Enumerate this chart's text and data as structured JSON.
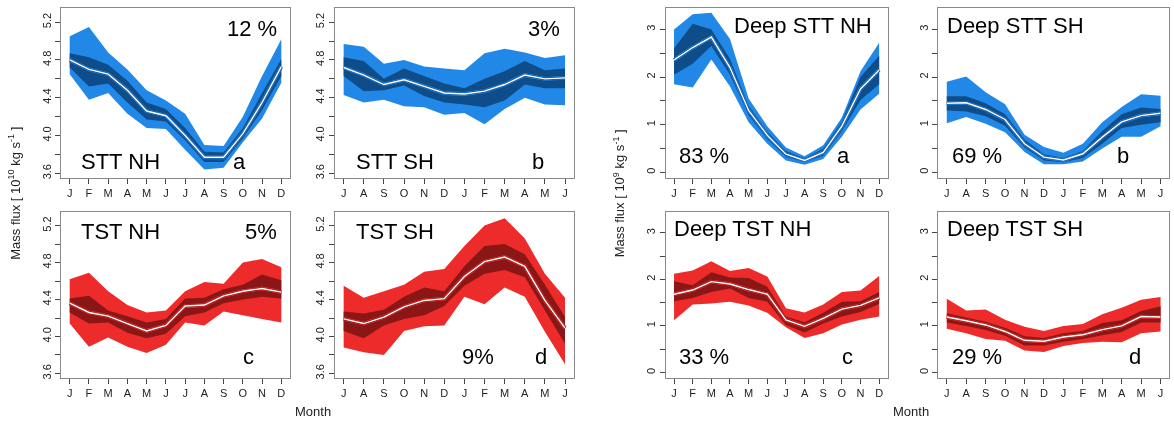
{
  "chart_data": [
    {
      "type": "line",
      "title": "STT NH",
      "annotations": [
        "12 %",
        "a"
      ],
      "ylabel": "Mass flux [ 10$^{10}$ kg s$^{-1}$ ]",
      "categories": [
        "J",
        "F",
        "M",
        "A",
        "M",
        "J",
        "J",
        "A",
        "S",
        "O",
        "N",
        "D"
      ],
      "ylim": [
        3.55,
        5.35
      ],
      "yticks": [
        3.6,
        {
          "value": 3.8,
          "label": null
        },
        {
          "value": 4,
          "label": "4.0"
        },
        {
          "value": 4.2,
          "label": null
        },
        4.4,
        {
          "value": 4.6,
          "label": null
        },
        4.8,
        {
          "value": 5.0,
          "label": null
        },
        5.2
      ],
      "series": [
        {
          "color": "#2188e8",
          "values": [
            4.8,
            4.7,
            4.65,
            4.48,
            4.26,
            4.21,
            4.0,
            3.77,
            3.77,
            4.02,
            4.35,
            4.73
          ],
          "lower": [
            4.65,
            4.38,
            4.45,
            4.23,
            4.08,
            4.07,
            3.85,
            3.64,
            3.66,
            3.93,
            4.18,
            4.56
          ],
          "upper": [
            5.05,
            5.15,
            4.88,
            4.7,
            4.48,
            4.37,
            4.23,
            3.9,
            3.89,
            4.2,
            4.63,
            5.02
          ]
        },
        {
          "color": "#0f4c8a",
          "lower": [
            4.72,
            4.52,
            4.55,
            4.35,
            4.17,
            4.15,
            3.95,
            3.72,
            3.72,
            3.97,
            4.27,
            4.63
          ],
          "upper": [
            4.87,
            4.83,
            4.75,
            4.58,
            4.35,
            4.28,
            4.08,
            3.83,
            3.82,
            4.08,
            4.45,
            4.81
          ],
          "values": [
            4.8,
            4.7,
            4.65,
            4.48,
            4.26,
            4.21,
            4.0,
            3.77,
            3.77,
            4.02,
            4.35,
            4.73
          ]
        },
        {
          "color": "#ffffff",
          "values": [
            4.8,
            4.7,
            4.65,
            4.48,
            4.26,
            4.21,
            4.0,
            3.77,
            3.77,
            4.02,
            4.35,
            4.73
          ]
        }
      ]
    },
    {
      "type": "line",
      "title": "STT SH",
      "annotations": [
        "3%",
        "b"
      ],
      "categories": [
        "J",
        "A",
        "S",
        "O",
        "N",
        "D",
        "J",
        "F",
        "M",
        "A",
        "M",
        "J"
      ],
      "ylim": [
        3.55,
        5.35
      ],
      "yticks": [
        3.6,
        {
          "value": 3.8,
          "label": null
        },
        {
          "value": 4,
          "label": "4.0"
        },
        {
          "value": 4.2,
          "label": null
        },
        4.4,
        {
          "value": 4.6,
          "label": null
        },
        4.8,
        {
          "value": 5.0,
          "label": null
        },
        5.2
      ],
      "series": [
        {
          "color": "#2188e8",
          "values": [
            4.72,
            4.64,
            4.54,
            4.59,
            4.52,
            4.45,
            4.44,
            4.47,
            4.54,
            4.64,
            4.6,
            4.61
          ],
          "lower": [
            4.43,
            4.35,
            4.38,
            4.31,
            4.3,
            4.22,
            4.24,
            4.12,
            4.28,
            4.4,
            4.33,
            4.32
          ],
          "upper": [
            4.97,
            4.94,
            4.76,
            4.8,
            4.73,
            4.71,
            4.69,
            4.87,
            4.92,
            4.88,
            4.82,
            4.85
          ]
        },
        {
          "color": "#0f4c8a",
          "lower": [
            4.63,
            4.47,
            4.48,
            4.53,
            4.42,
            4.35,
            4.33,
            4.3,
            4.37,
            4.54,
            4.5,
            4.5
          ],
          "upper": [
            4.83,
            4.79,
            4.6,
            4.71,
            4.63,
            4.55,
            4.5,
            4.6,
            4.68,
            4.79,
            4.69,
            4.71
          ],
          "values": [
            4.72,
            4.64,
            4.54,
            4.59,
            4.52,
            4.45,
            4.44,
            4.47,
            4.54,
            4.64,
            4.6,
            4.61
          ]
        },
        {
          "color": "#ffffff",
          "values": [
            4.72,
            4.64,
            4.54,
            4.59,
            4.52,
            4.45,
            4.44,
            4.47,
            4.54,
            4.64,
            4.6,
            4.61
          ]
        }
      ]
    },
    {
      "type": "line",
      "title": "TST NH",
      "annotations": [
        "5%",
        "c"
      ],
      "xlabel": "Month",
      "categories": [
        "J",
        "F",
        "M",
        "A",
        "M",
        "J",
        "J",
        "A",
        "S",
        "O",
        "N",
        "D"
      ],
      "ylim": [
        3.55,
        5.35
      ],
      "yticks": [
        3.6,
        {
          "value": 3.8,
          "label": null
        },
        {
          "value": 4,
          "label": "4.0"
        },
        {
          "value": 4.2,
          "label": null
        },
        4.4,
        {
          "value": 4.6,
          "label": null
        },
        4.8,
        {
          "value": 5.0,
          "label": null
        },
        5.2
      ],
      "series": [
        {
          "color": "#ed2b2b",
          "values": [
            4.36,
            4.26,
            4.22,
            4.14,
            4.06,
            4.12,
            4.33,
            4.34,
            4.44,
            4.49,
            4.52,
            4.48
          ],
          "lower": [
            4.14,
            3.89,
            3.99,
            3.89,
            3.82,
            3.91,
            4.15,
            4.12,
            4.27,
            4.23,
            4.19,
            4.15
          ],
          "upper": [
            4.62,
            4.69,
            4.49,
            4.34,
            4.26,
            4.28,
            4.49,
            4.59,
            4.57,
            4.8,
            4.84,
            4.75
          ]
        },
        {
          "color": "#8b1616",
          "lower": [
            4.26,
            4.14,
            4.15,
            4.04,
            3.98,
            4.03,
            4.22,
            4.26,
            4.36,
            4.4,
            4.43,
            4.41
          ],
          "upper": [
            4.41,
            4.44,
            4.28,
            4.22,
            4.15,
            4.19,
            4.41,
            4.42,
            4.51,
            4.56,
            4.67,
            4.61
          ],
          "values": [
            4.36,
            4.26,
            4.22,
            4.14,
            4.06,
            4.12,
            4.33,
            4.34,
            4.44,
            4.49,
            4.52,
            4.48
          ]
        },
        {
          "color": "#ffffff",
          "values": [
            4.36,
            4.26,
            4.22,
            4.14,
            4.06,
            4.12,
            4.33,
            4.34,
            4.44,
            4.49,
            4.52,
            4.48
          ]
        }
      ]
    },
    {
      "type": "line",
      "title": "TST SH",
      "annotations": [
        "9%",
        "d"
      ],
      "categories": [
        "J",
        "A",
        "S",
        "O",
        "N",
        "D",
        "J",
        "F",
        "M",
        "A",
        "M",
        "J"
      ],
      "ylim": [
        3.55,
        5.35
      ],
      "yticks": [
        3.6,
        {
          "value": 3.8,
          "label": null
        },
        {
          "value": 4,
          "label": "4.0"
        },
        {
          "value": 4.2,
          "label": null
        },
        4.4,
        {
          "value": 4.6,
          "label": null
        },
        4.8,
        {
          "value": 5.0,
          "label": null
        },
        5.2
      ],
      "series": [
        {
          "color": "#ed2b2b",
          "values": [
            4.19,
            4.14,
            4.21,
            4.32,
            4.39,
            4.41,
            4.65,
            4.81,
            4.86,
            4.76,
            4.39,
            4.09
          ],
          "lower": [
            3.88,
            3.83,
            3.8,
            4.06,
            4.11,
            4.12,
            4.43,
            4.35,
            4.53,
            4.43,
            4.05,
            3.7
          ],
          "upper": [
            4.55,
            4.42,
            4.49,
            4.56,
            4.7,
            4.73,
            4.98,
            5.2,
            5.28,
            5.06,
            4.68,
            4.42
          ]
        },
        {
          "color": "#8b1616",
          "lower": [
            4.06,
            3.98,
            4.12,
            4.19,
            4.23,
            4.33,
            4.55,
            4.68,
            4.72,
            4.64,
            4.28,
            3.92
          ],
          "upper": [
            4.27,
            4.25,
            4.29,
            4.43,
            4.53,
            4.49,
            4.76,
            4.98,
            5.0,
            4.89,
            4.56,
            4.21
          ],
          "values": [
            4.19,
            4.14,
            4.21,
            4.32,
            4.39,
            4.41,
            4.65,
            4.81,
            4.86,
            4.76,
            4.39,
            4.09
          ]
        },
        {
          "color": "#ffffff",
          "values": [
            4.19,
            4.14,
            4.21,
            4.32,
            4.39,
            4.41,
            4.65,
            4.81,
            4.86,
            4.76,
            4.39,
            4.09
          ]
        }
      ]
    },
    {
      "type": "line",
      "title": "Deep STT NH",
      "annotations": [
        "83 %",
        "a"
      ],
      "ylabel": "Mass flux [ 10$^{9}$ kg s$^{-1}$ ]",
      "categories": [
        "J",
        "F",
        "M",
        "A",
        "M",
        "J",
        "J",
        "A",
        "S",
        "O",
        "N",
        "D"
      ],
      "ylim": [
        -0.12,
        3.45
      ],
      "yticks": [
        0,
        {
          "value": 0.5,
          "label": null
        },
        1,
        {
          "value": 1.5,
          "label": null
        },
        2,
        {
          "value": 2.5,
          "label": null
        },
        3
      ],
      "series": [
        {
          "color": "#2188e8",
          "values": [
            2.36,
            2.62,
            2.84,
            2.2,
            1.3,
            0.78,
            0.38,
            0.25,
            0.42,
            0.97,
            1.75,
            2.15
          ],
          "lower": [
            1.85,
            1.78,
            2.37,
            1.8,
            1.05,
            0.6,
            0.25,
            0.16,
            0.28,
            0.75,
            1.32,
            1.65
          ],
          "upper": [
            3.0,
            3.32,
            3.35,
            2.8,
            1.55,
            0.97,
            0.52,
            0.34,
            0.57,
            1.15,
            2.12,
            2.72
          ]
        },
        {
          "color": "#0f4c8a",
          "lower": [
            2.05,
            2.28,
            2.65,
            2.05,
            1.2,
            0.7,
            0.32,
            0.21,
            0.35,
            0.87,
            1.52,
            1.85
          ],
          "upper": [
            2.6,
            3.12,
            3.0,
            2.38,
            1.4,
            0.85,
            0.45,
            0.29,
            0.5,
            1.07,
            2.0,
            2.45
          ],
          "values": [
            2.36,
            2.62,
            2.84,
            2.2,
            1.3,
            0.78,
            0.38,
            0.25,
            0.42,
            0.97,
            1.75,
            2.15
          ]
        },
        {
          "color": "#ffffff",
          "values": [
            2.36,
            2.62,
            2.84,
            2.2,
            1.3,
            0.78,
            0.38,
            0.25,
            0.42,
            0.97,
            1.75,
            2.15
          ]
        }
      ]
    },
    {
      "type": "line",
      "title": "Deep STT SH",
      "annotations": [
        "69 %",
        "b"
      ],
      "categories": [
        "J",
        "A",
        "S",
        "O",
        "N",
        "D",
        "J",
        "F",
        "M",
        "A",
        "M",
        "J"
      ],
      "ylim": [
        -0.12,
        3.45
      ],
      "yticks": [
        0,
        {
          "value": 0.5,
          "label": null
        },
        1,
        {
          "value": 1.5,
          "label": null
        },
        2,
        {
          "value": 2.5,
          "label": null
        },
        3
      ],
      "series": [
        {
          "color": "#2188e8",
          "values": [
            1.45,
            1.46,
            1.32,
            1.11,
            0.6,
            0.32,
            0.26,
            0.39,
            0.74,
            1.06,
            1.19,
            1.24
          ],
          "lower": [
            1.03,
            1.16,
            1.02,
            0.84,
            0.43,
            0.17,
            0.17,
            0.23,
            0.5,
            0.75,
            0.75,
            0.97
          ],
          "upper": [
            1.9,
            2.01,
            1.68,
            1.43,
            0.79,
            0.53,
            0.41,
            0.6,
            1.05,
            1.37,
            1.64,
            1.61
          ]
        },
        {
          "color": "#0f4c8a",
          "lower": [
            1.3,
            1.28,
            1.18,
            0.98,
            0.52,
            0.25,
            0.21,
            0.3,
            0.6,
            0.93,
            1.0,
            1.05
          ],
          "upper": [
            1.6,
            1.6,
            1.45,
            1.22,
            0.69,
            0.38,
            0.3,
            0.45,
            0.87,
            1.22,
            1.36,
            1.33
          ],
          "values": [
            1.45,
            1.46,
            1.32,
            1.11,
            0.6,
            0.32,
            0.26,
            0.39,
            0.74,
            1.06,
            1.19,
            1.24
          ]
        },
        {
          "color": "#ffffff",
          "values": [
            1.45,
            1.46,
            1.32,
            1.11,
            0.6,
            0.32,
            0.26,
            0.39,
            0.74,
            1.06,
            1.19,
            1.24
          ]
        }
      ]
    },
    {
      "type": "line",
      "title": "Deep TST NH",
      "annotations": [
        "33 %",
        "c"
      ],
      "xlabel": "Month",
      "categories": [
        "J",
        "F",
        "M",
        "A",
        "M",
        "J",
        "J",
        "A",
        "S",
        "O",
        "N",
        "D"
      ],
      "ylim": [
        -0.12,
        3.45
      ],
      "yticks": [
        0,
        {
          "value": 0.5,
          "label": null
        },
        1,
        {
          "value": 1.5,
          "label": null
        },
        2,
        {
          "value": 2.5,
          "label": null
        },
        3
      ],
      "series": [
        {
          "color": "#ed2b2b",
          "values": [
            1.68,
            1.77,
            1.95,
            1.9,
            1.78,
            1.68,
            1.13,
            0.99,
            1.16,
            1.36,
            1.44,
            1.6
          ],
          "lower": [
            1.12,
            1.46,
            1.48,
            1.52,
            1.44,
            1.28,
            0.97,
            0.74,
            0.84,
            1.03,
            1.13,
            1.2
          ],
          "upper": [
            2.12,
            2.19,
            2.39,
            2.18,
            2.24,
            2.06,
            1.38,
            1.29,
            1.46,
            1.73,
            1.76,
            2.07
          ]
        },
        {
          "color": "#8b1616",
          "lower": [
            1.53,
            1.6,
            1.73,
            1.8,
            1.6,
            1.52,
            1.02,
            0.86,
            1.05,
            1.2,
            1.3,
            1.47
          ],
          "upper": [
            1.96,
            1.87,
            2.15,
            2.04,
            2.03,
            1.84,
            1.2,
            1.08,
            1.28,
            1.52,
            1.53,
            1.73
          ],
          "values": [
            1.68,
            1.77,
            1.95,
            1.9,
            1.78,
            1.68,
            1.13,
            0.99,
            1.16,
            1.36,
            1.44,
            1.6
          ]
        },
        {
          "color": "#ffffff",
          "values": [
            1.68,
            1.77,
            1.95,
            1.9,
            1.78,
            1.68,
            1.13,
            0.99,
            1.16,
            1.36,
            1.44,
            1.6
          ]
        }
      ]
    },
    {
      "type": "line",
      "title": "Deep TST SH",
      "annotations": [
        "29 %",
        "d"
      ],
      "categories": [
        "J",
        "A",
        "S",
        "O",
        "N",
        "D",
        "J",
        "F",
        "M",
        "A",
        "M",
        "J"
      ],
      "ylim": [
        -0.12,
        3.45
      ],
      "yticks": [
        0,
        {
          "value": 0.5,
          "label": null
        },
        1,
        {
          "value": 1.5,
          "label": null
        },
        2,
        {
          "value": 2.5,
          "label": null
        },
        3
      ],
      "series": [
        {
          "color": "#ed2b2b",
          "values": [
            1.19,
            1.11,
            1.02,
            0.88,
            0.69,
            0.67,
            0.76,
            0.81,
            0.92,
            1.0,
            1.2,
            1.19
          ],
          "lower": [
            0.94,
            0.84,
            0.72,
            0.68,
            0.47,
            0.44,
            0.57,
            0.63,
            0.66,
            0.65,
            0.84,
            0.88
          ],
          "upper": [
            1.58,
            1.33,
            1.35,
            1.13,
            0.98,
            0.89,
            1.0,
            1.04,
            1.25,
            1.39,
            1.56,
            1.62
          ]
        },
        {
          "color": "#8b1616",
          "lower": [
            1.07,
            1.0,
            0.91,
            0.79,
            0.58,
            0.58,
            0.66,
            0.72,
            0.8,
            0.87,
            1.07,
            1.07
          ],
          "upper": [
            1.27,
            1.18,
            1.09,
            0.96,
            0.78,
            0.74,
            0.84,
            0.89,
            1.06,
            1.12,
            1.32,
            1.42
          ],
          "values": [
            1.19,
            1.11,
            1.02,
            0.88,
            0.69,
            0.67,
            0.76,
            0.81,
            0.92,
            1.0,
            1.2,
            1.19
          ]
        },
        {
          "color": "#ffffff",
          "values": [
            1.19,
            1.11,
            1.02,
            0.88,
            0.69,
            0.67,
            0.76,
            0.81,
            0.92,
            1.0,
            1.2,
            1.19
          ]
        }
      ]
    }
  ]
}
